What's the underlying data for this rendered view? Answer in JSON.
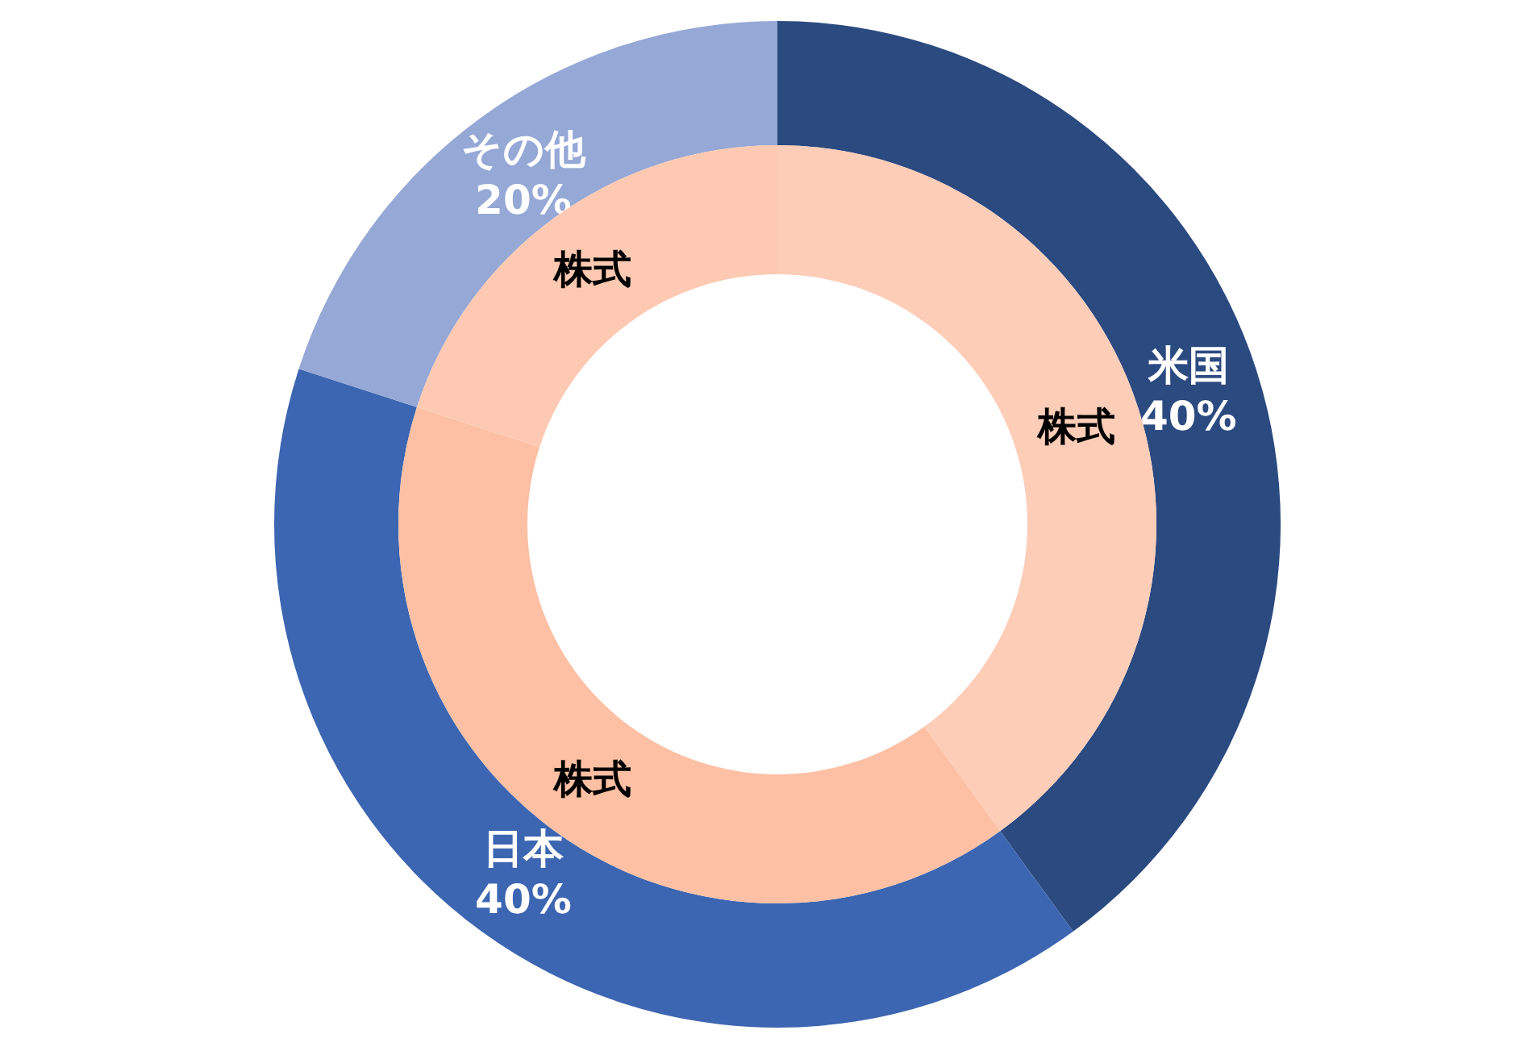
{
  "chart_data": [
    {
      "type": "donut",
      "categories": [
        "米国",
        "日本",
        "その他"
      ],
      "values": [
        40,
        40,
        20
      ],
      "colors": [
        "#2b4a80",
        "#3c66b1",
        "#95a8d6"
      ],
      "value_labels": [
        "40%",
        "40%",
        "20%"
      ]
    },
    {
      "type": "donut",
      "categories": [
        "株式",
        "株式",
        "株式"
      ],
      "values": [
        40,
        40,
        20
      ],
      "colors": [
        "#fdcdb8",
        "#fdc0a4",
        "#fdc9b2"
      ]
    }
  ]
}
